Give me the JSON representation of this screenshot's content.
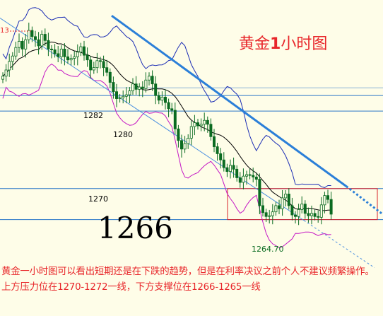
{
  "chart_data": {
    "type": "candlestick",
    "title": "黄金1小时图",
    "title_prefix": "黄金",
    "title_num": "1",
    "title_suffix": "小时图",
    "big_price_label": "1266",
    "ylim": [
      1261.5,
      1292.5
    ],
    "horizontal_levels": [
      {
        "label": "1282",
        "value": 1282
      },
      {
        "label": "1280",
        "value": 1280
      },
      {
        "label": "1270",
        "value": 1270
      },
      {
        "value": 1266
      }
    ],
    "recent_low": "1264.70",
    "edge_label": "13",
    "support_range": [
      1266,
      1270
    ],
    "close_series": [
      1284.5,
      1285.3,
      1286.4,
      1287.1,
      1288.2,
      1289.0,
      1288.0,
      1289.2,
      1290.4,
      1289.6,
      1289.2,
      1288.4,
      1289.9,
      1289.1,
      1288.0,
      1287.9,
      1287.4,
      1287.0,
      1288.0,
      1287.0,
      1286.6,
      1286.8,
      1287.0,
      1287.6,
      1288.3,
      1287.2,
      1286.6,
      1285.3,
      1285.6,
      1286.5,
      1286.4,
      1285.6,
      1285.0,
      1283.7,
      1282.5,
      1281.6,
      1281.7,
      1281.9,
      1282.1,
      1282.6,
      1283.5,
      1282.8,
      1283.1,
      1282.9,
      1284.0,
      1284.5,
      1283.5,
      1282.0,
      1281.4,
      1281.8,
      1281.1,
      1280.3,
      1280.1,
      1277.7,
      1276.2,
      1275.1,
      1275.8,
      1276.5,
      1278.0,
      1278.5,
      1278.1,
      1278.3,
      1278.8,
      1278.3,
      1276.7,
      1275.4,
      1274.5,
      1273.7,
      1272.7,
      1272.2,
      1273.0,
      1272.5,
      1271.4,
      1270.8,
      1271.6,
      1271.8,
      1271.7,
      1271.5,
      1271.2,
      1267.8,
      1266.9,
      1266.4,
      1266.5,
      1267.0,
      1267.8,
      1267.4,
      1268.8,
      1269.3,
      1267.8,
      1266.6,
      1266.4,
      1267.3,
      1268.0,
      1266.8,
      1266.5,
      1266.8,
      1266.4,
      1266.3,
      1267.9,
      1269.1,
      1268.6,
      1266.7
    ],
    "indicators": [
      "布林带上轨",
      "布林带中轨",
      "布林带下轨"
    ],
    "trendlines": [
      "下降压力线",
      "下降通道线"
    ]
  },
  "comment": "黄金一小时图可以看出短期还是在下跌的趋势，但是在利率决议之前个人不建议频繁操作。上方压力位在1270-1272一线，下方支撑位在1266-1265一线",
  "colors": {
    "background": "#fefde8",
    "bull_candle": "#0a6b21",
    "bear_candle": "#0a6b21",
    "trend_thick": "#2b7fd8",
    "trend_thin": "#4a8fe0",
    "bollinger_outer": "#1b2db5",
    "bollinger_mid": "#000000",
    "lower_band": "#c416c4",
    "level_line": "#2a76c8",
    "support_box": "#d8222a",
    "text_red": "#e8262a"
  }
}
